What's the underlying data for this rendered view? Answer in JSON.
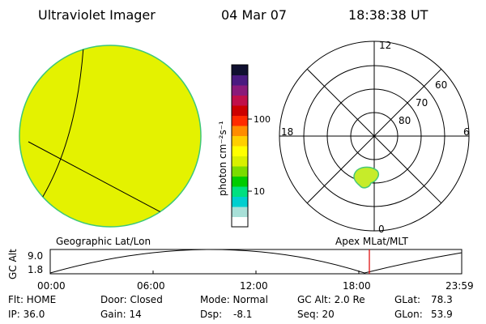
{
  "header": {
    "title": "Ultraviolet Imager",
    "date": "04 Mar 07",
    "time": "18:38:38 UT"
  },
  "colorbar": {
    "label": "photon cm⁻²s⁻¹",
    "ticks": [
      "100",
      "10"
    ],
    "scale": "log",
    "colors": [
      "#ffffff",
      "#a8e0d8",
      "#00cfcf",
      "#00e080",
      "#00cc00",
      "#7adc00",
      "#d8f000",
      "#ffff00",
      "#ffcf00",
      "#ff8c00",
      "#ff2a00",
      "#cc0000",
      "#c0104a",
      "#8a1a7a",
      "#4a1a80",
      "#101030"
    ]
  },
  "geo_image": {
    "fill_color": "#e4f200",
    "edge_color": "#3cc878"
  },
  "polar_plot": {
    "mlt_labels": [
      "12",
      "18",
      "6",
      "0"
    ],
    "lat_labels": [
      "60",
      "70",
      "80"
    ],
    "blob_color": "#c6ec2a",
    "blob_edge": "#46c878"
  },
  "labels": {
    "left_panel": "Geographic Lat/Lon",
    "right_panel": "Apex MLat/MLT"
  },
  "timeline": {
    "ylabel": "GC Alt",
    "y_ticks": [
      "9.0",
      "1.8"
    ],
    "x_ticks": [
      "00:00",
      "06:00",
      "12:00",
      "18:00",
      "23:59"
    ],
    "marker_color": "#dd0000"
  },
  "info": {
    "flt": "Flt: HOME",
    "ip": "IP: 36.0",
    "door": "Door: Closed",
    "gain": "Gain: 14",
    "mode": "Mode: Normal",
    "dsp_label": "Dsp:",
    "dsp_value": "-8.1",
    "gcalt": "GC Alt: 2.0 Re",
    "seq": "Seq: 20",
    "glat_label": "GLat:",
    "glat_value": "78.3",
    "glon_label": "GLon:",
    "glon_value": "53.9"
  }
}
